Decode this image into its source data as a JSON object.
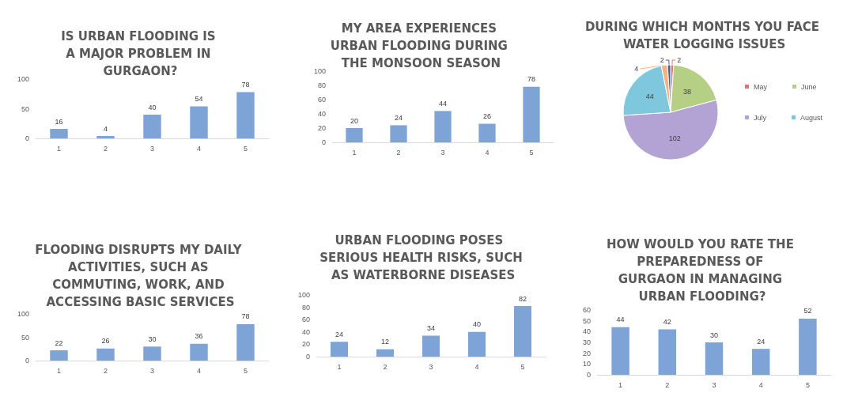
{
  "chart_data": [
    {
      "type": "bar",
      "title": "IS URBAN FLOODING IS A MAJOR PROBLEM IN GURGAON?",
      "categories": [
        "1",
        "2",
        "3",
        "4",
        "5"
      ],
      "values": [
        16,
        4,
        40,
        54,
        78
      ],
      "color": "#7ea3d6",
      "ylim": [
        0,
        100
      ],
      "yticks": [
        0,
        50,
        100
      ],
      "data_labels": true,
      "grid": false,
      "legend": false
    },
    {
      "type": "bar",
      "title": "MY AREA EXPERIENCES URBAN FLOODING DURING THE MONSOON SEASON",
      "categories": [
        "1",
        "2",
        "3",
        "4",
        "5"
      ],
      "values": [
        20,
        24,
        44,
        26,
        78
      ],
      "color": "#7ea3d6",
      "ylim": [
        0,
        100
      ],
      "yticks": [
        0,
        20,
        40,
        60,
        80,
        100
      ],
      "data_labels": true,
      "grid": false,
      "legend": false
    },
    {
      "type": "pie",
      "title": "DURING WHICH MONTHS YOU FACE WATER LOGGING ISSUES",
      "categories": [
        "May",
        "June",
        "July",
        "August",
        null,
        null
      ],
      "values": [
        2,
        38,
        102,
        44,
        4,
        2
      ],
      "colors": [
        "#e0746c",
        "#b5cf84",
        "#b3a3d4",
        "#7ec7dd",
        "#f4b183",
        "#4a5a8c"
      ],
      "data_labels": true,
      "legend": "right"
    },
    {
      "type": "bar",
      "title": "FLOODING DISRUPTS MY DAILY ACTIVITIES, SUCH AS COMMUTING, WORK, AND ACCESSING BASIC SERVICES",
      "categories": [
        "1",
        "2",
        "3",
        "4",
        "5"
      ],
      "values": [
        22,
        26,
        30,
        36,
        78
      ],
      "color": "#7ea3d6",
      "ylim": [
        0,
        100
      ],
      "yticks": [
        0,
        50,
        100
      ],
      "data_labels": true,
      "grid": false,
      "legend": false
    },
    {
      "type": "bar",
      "title": "URBAN FLOODING POSES SERIOUS HEALTH RISKS, SUCH AS WATERBORNE DISEASES",
      "categories": [
        "1",
        "2",
        "3",
        "4",
        "5"
      ],
      "values": [
        24,
        12,
        34,
        40,
        82
      ],
      "color": "#7ea3d6",
      "ylim": [
        0,
        100
      ],
      "yticks": [
        0,
        20,
        40,
        60,
        80,
        100
      ],
      "data_labels": true,
      "grid": false,
      "legend": false
    },
    {
      "type": "bar",
      "title": "HOW WOULD YOU RATE THE PREPAREDNESS OF GURGAON IN MANAGING URBAN FLOODING?",
      "categories": [
        "1",
        "2",
        "3",
        "4",
        "5"
      ],
      "values": [
        44,
        42,
        30,
        24,
        52
      ],
      "color": "#7ea3d6",
      "ylim": [
        0,
        60
      ],
      "yticks": [
        0,
        10,
        20,
        30,
        40,
        50,
        60
      ],
      "data_labels": true,
      "grid": false,
      "legend": false
    }
  ]
}
